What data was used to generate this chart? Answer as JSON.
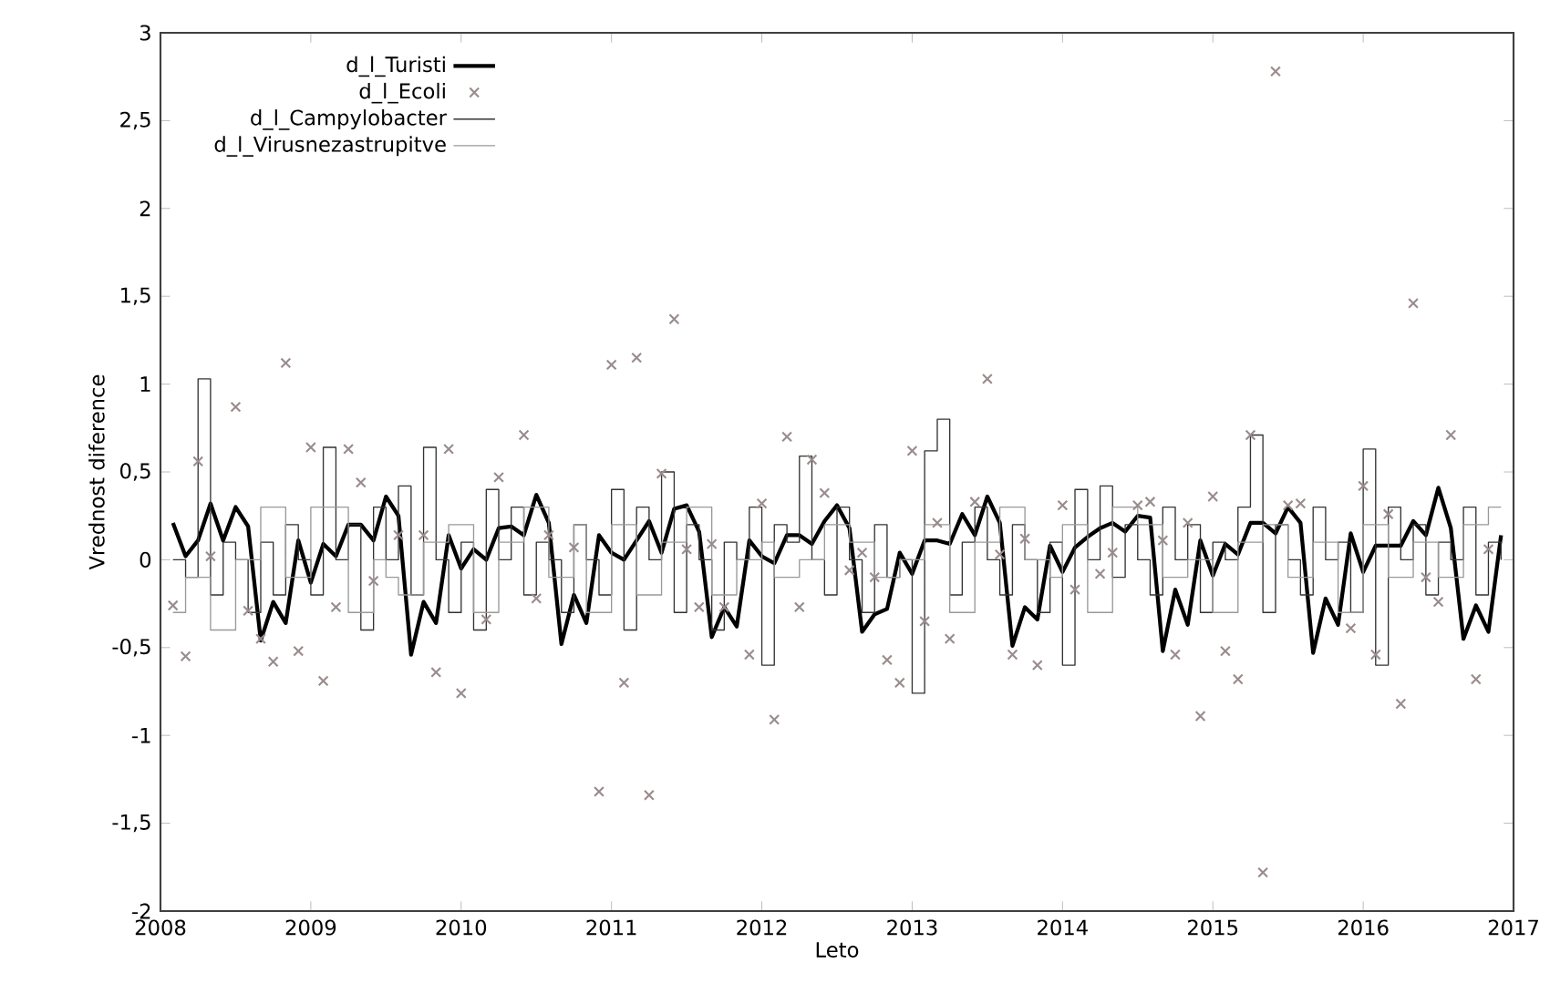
{
  "chart_data": {
    "type": "line",
    "xlabel": "Leto",
    "ylabel": "Vrednost diference",
    "xlim": [
      2008,
      2017
    ],
    "xticks": [
      2008,
      2009,
      2010,
      2011,
      2012,
      2013,
      2014,
      2015,
      2016,
      2017
    ],
    "ylim": [
      -2,
      3
    ],
    "yticks": [
      -2,
      {
        "value": -1.5,
        "label": "-1,5"
      },
      -1,
      {
        "value": -0.5,
        "label": "-0,5"
      },
      0,
      {
        "value": 0.5,
        "label": "0,5"
      },
      1,
      {
        "value": 1.5,
        "label": "1,5"
      },
      2,
      {
        "value": 2.5,
        "label": "2,5"
      },
      3
    ],
    "legend": "top left",
    "grid": false,
    "x": [
      2008.083,
      2008.167,
      2008.25,
      2008.333,
      2008.417,
      2008.5,
      2008.583,
      2008.667,
      2008.75,
      2008.833,
      2008.917,
      2009.0,
      2009.083,
      2009.167,
      2009.25,
      2009.333,
      2009.417,
      2009.5,
      2009.583,
      2009.667,
      2009.75,
      2009.833,
      2009.917,
      2010.0,
      2010.083,
      2010.167,
      2010.25,
      2010.333,
      2010.417,
      2010.5,
      2010.583,
      2010.667,
      2010.75,
      2010.833,
      2010.917,
      2011.0,
      2011.083,
      2011.167,
      2011.25,
      2011.333,
      2011.417,
      2011.5,
      2011.583,
      2011.667,
      2011.75,
      2011.833,
      2011.917,
      2012.0,
      2012.083,
      2012.167,
      2012.25,
      2012.333,
      2012.417,
      2012.5,
      2012.583,
      2012.667,
      2012.75,
      2012.833,
      2012.917,
      2013.0,
      2013.083,
      2013.167,
      2013.25,
      2013.333,
      2013.417,
      2013.5,
      2013.583,
      2013.667,
      2013.75,
      2013.833,
      2013.917,
      2014.0,
      2014.083,
      2014.167,
      2014.25,
      2014.333,
      2014.417,
      2014.5,
      2014.583,
      2014.667,
      2014.75,
      2014.833,
      2014.917,
      2015.0,
      2015.083,
      2015.167,
      2015.25,
      2015.333,
      2015.417,
      2015.5,
      2015.583,
      2015.667,
      2015.75,
      2015.833,
      2015.917,
      2016.0,
      2016.083,
      2016.167,
      2016.25,
      2016.333,
      2016.417,
      2016.5,
      2016.583,
      2016.667,
      2016.75,
      2016.833,
      2016.917
    ],
    "series": [
      {
        "name": "d_l_Turisti",
        "type": "line",
        "color": "#000000",
        "marker": "none",
        "line_style": "solid",
        "values": [
          0.21,
          0.02,
          0.11,
          0.32,
          0.11,
          0.3,
          0.19,
          -0.46,
          -0.24,
          -0.36,
          0.11,
          -0.13,
          0.09,
          0.02,
          0.2,
          0.2,
          0.11,
          0.36,
          0.25,
          -0.54,
          -0.24,
          -0.36,
          0.14,
          -0.05,
          0.06,
          0.0,
          0.18,
          0.19,
          0.14,
          0.37,
          0.21,
          -0.48,
          -0.2,
          -0.36,
          0.14,
          0.04,
          0.0,
          0.11,
          0.22,
          0.04,
          0.29,
          0.31,
          0.16,
          -0.44,
          -0.27,
          -0.38,
          0.11,
          0.02,
          -0.02,
          0.14,
          0.14,
          0.09,
          0.22,
          0.31,
          0.18,
          -0.41,
          -0.31,
          -0.28,
          0.04,
          -0.08,
          0.11,
          0.11,
          0.09,
          0.26,
          0.14,
          0.36,
          0.21,
          -0.49,
          -0.27,
          -0.34,
          0.08,
          -0.07,
          0.07,
          0.13,
          0.18,
          0.21,
          0.16,
          0.25,
          0.24,
          -0.52,
          -0.17,
          -0.37,
          0.11,
          -0.09,
          0.09,
          0.03,
          0.21,
          0.21,
          0.15,
          0.3,
          0.21,
          -0.53,
          -0.22,
          -0.37,
          0.15,
          -0.07,
          0.08,
          0.08,
          0.08,
          0.22,
          0.14,
          0.41,
          0.18,
          -0.45,
          -0.26,
          -0.41,
          0.14
        ]
      },
      {
        "name": "d_l_Ecoli",
        "type": "scatter",
        "color": "#9a8c8c",
        "marker": "cross",
        "x": [
          2008.083,
          2008.167,
          2008.25,
          2008.333,
          2008.5,
          2008.583,
          2008.667,
          2008.75,
          2008.833,
          2008.917,
          2009.0,
          2009.083,
          2009.167,
          2009.25,
          2009.333,
          2009.417,
          2009.583,
          2009.75,
          2009.833,
          2009.917,
          2010.0,
          2010.167,
          2010.25,
          2010.417,
          2010.5,
          2010.583,
          2010.75,
          2010.917,
          2011.0,
          2011.083,
          2011.167,
          2011.25,
          2011.333,
          2011.417,
          2011.5,
          2011.583,
          2011.667,
          2011.75,
          2011.917,
          2012.0,
          2012.083,
          2012.167,
          2012.25,
          2012.333,
          2012.417,
          2012.583,
          2012.667,
          2012.75,
          2012.833,
          2012.917,
          2013.0,
          2013.083,
          2013.167,
          2013.25,
          2013.417,
          2013.5,
          2013.583,
          2013.667,
          2013.75,
          2013.833,
          2014.0,
          2014.083,
          2014.25,
          2014.333,
          2014.5,
          2014.583,
          2014.667,
          2014.75,
          2014.833,
          2014.917,
          2015.0,
          2015.083,
          2015.167,
          2015.25,
          2015.333,
          2015.417,
          2015.5,
          2015.583,
          2015.917,
          2016.0,
          2016.083,
          2016.167,
          2016.25,
          2016.333,
          2016.417,
          2016.5,
          2016.583,
          2016.75,
          2016.833
        ],
        "values": [
          -0.26,
          -0.55,
          0.56,
          0.02,
          0.87,
          -0.29,
          -0.45,
          -0.58,
          1.12,
          -0.52,
          0.64,
          -0.69,
          -0.27,
          0.63,
          0.44,
          -0.12,
          0.14,
          0.14,
          -0.64,
          0.63,
          -0.76,
          -0.34,
          0.47,
          0.71,
          -0.22,
          0.14,
          0.07,
          -1.32,
          1.11,
          -0.7,
          1.15,
          -1.34,
          0.49,
          1.37,
          0.06,
          -0.27,
          0.09,
          -0.27,
          -0.54,
          0.32,
          -0.91,
          0.7,
          -0.27,
          0.57,
          0.38,
          -0.06,
          0.04,
          -0.1,
          -0.57,
          -0.7,
          0.62,
          -0.35,
          0.21,
          -0.45,
          0.33,
          1.03,
          0.03,
          -0.54,
          0.12,
          -0.6,
          0.31,
          -0.17,
          -0.08,
          0.04,
          0.31,
          0.33,
          0.11,
          -0.54,
          0.21,
          -0.89,
          0.36,
          -0.52,
          -0.68,
          0.71,
          -1.78,
          2.78,
          0.31,
          0.32,
          -0.39,
          0.42,
          -0.54,
          0.26,
          -0.82,
          1.46,
          -0.1,
          -0.24,
          0.71,
          -0.68,
          0.06
        ]
      },
      {
        "name": "d_l_Campylobacter",
        "type": "step",
        "color": "#333333",
        "marker": "none",
        "line_style": "solid",
        "values": [
          0.0,
          -0.1,
          1.03,
          -0.2,
          0.1,
          0.0,
          -0.3,
          0.1,
          -0.2,
          0.2,
          0.0,
          -0.2,
          0.64,
          0.0,
          0.2,
          -0.4,
          0.3,
          0.0,
          0.42,
          -0.2,
          0.64,
          0.0,
          -0.3,
          0.1,
          -0.4,
          0.4,
          0.0,
          0.3,
          -0.2,
          0.1,
          0.0,
          -0.3,
          0.2,
          0.0,
          -0.2,
          0.4,
          -0.4,
          0.3,
          0.0,
          0.5,
          -0.3,
          0.2,
          0.0,
          -0.4,
          0.1,
          0.0,
          0.3,
          -0.6,
          0.2,
          0.1,
          0.59,
          0.0,
          -0.2,
          0.3,
          0.0,
          -0.3,
          0.2,
          -0.1,
          0.0,
          -0.76,
          0.62,
          0.8,
          -0.2,
          0.1,
          0.3,
          0.0,
          -0.2,
          0.2,
          0.0,
          -0.3,
          0.1,
          -0.6,
          0.4,
          0.0,
          0.42,
          -0.1,
          0.2,
          0.0,
          -0.2,
          0.3,
          0.0,
          0.2,
          -0.3,
          0.1,
          0.0,
          0.3,
          0.71,
          -0.3,
          0.2,
          0.0,
          -0.2,
          0.3,
          0.0,
          0.1,
          -0.3,
          0.63,
          -0.6,
          0.3,
          0.0,
          0.2,
          -0.2,
          0.1,
          0.0,
          0.3,
          -0.2,
          0.1,
          0.0
        ]
      },
      {
        "name": "d_l_Virusnezastrupitve",
        "type": "step",
        "color": "#999999",
        "marker": "none",
        "line_style": "solid",
        "values": [
          -0.3,
          -0.1,
          -0.1,
          -0.4,
          -0.4,
          0.0,
          0.0,
          0.3,
          0.3,
          -0.1,
          -0.1,
          0.3,
          0.3,
          0.3,
          -0.3,
          -0.3,
          0.0,
          -0.1,
          -0.2,
          -0.2,
          0.1,
          0.1,
          0.2,
          0.2,
          -0.3,
          -0.3,
          0.1,
          0.1,
          0.3,
          0.3,
          -0.1,
          -0.1,
          0.2,
          -0.3,
          -0.3,
          0.2,
          0.2,
          -0.2,
          -0.2,
          0.1,
          0.1,
          0.3,
          0.3,
          -0.2,
          -0.2,
          0.0,
          0.0,
          0.1,
          -0.1,
          -0.1,
          0.0,
          0.0,
          0.2,
          0.2,
          0.1,
          0.1,
          -0.1,
          -0.1,
          0.0,
          0.0,
          0.2,
          0.2,
          -0.3,
          -0.3,
          0.1,
          0.1,
          0.3,
          0.3,
          0.0,
          0.0,
          -0.1,
          0.2,
          0.2,
          -0.3,
          -0.3,
          0.3,
          0.3,
          0.2,
          0.2,
          -0.1,
          -0.1,
          0.0,
          0.0,
          -0.3,
          -0.3,
          0.1,
          0.1,
          0.2,
          0.2,
          -0.1,
          -0.1,
          0.1,
          0.1,
          -0.3,
          -0.3,
          0.2,
          0.2,
          -0.1,
          -0.1,
          0.1,
          0.1,
          -0.1,
          -0.1,
          0.2,
          0.2,
          0.3,
          0.3
        ]
      }
    ]
  }
}
